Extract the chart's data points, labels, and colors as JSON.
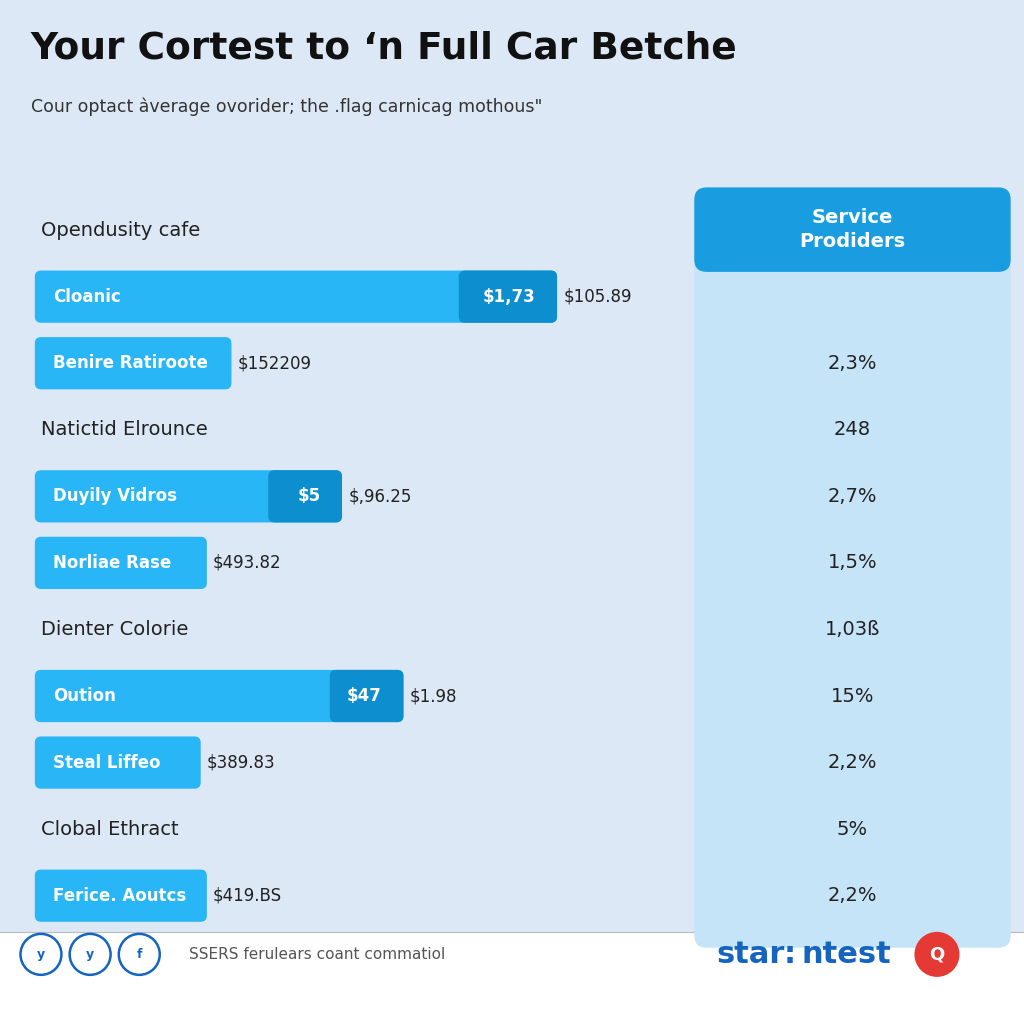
{
  "title": "Your Cortest to ‘n Full Car Betche",
  "subtitle": "Cour optact àverage ovorider; the .flag carnicag mothous\"",
  "bg_color": "#dce8f5",
  "rows": [
    {
      "label": "Opendusity cafe",
      "bar_label": null,
      "bar_value": null,
      "bar_dark_val": null,
      "bar_end_label": null,
      "outside_label": null,
      "right_value": "Service\nProdiders",
      "is_header": true,
      "is_plain": true
    },
    {
      "label": "Cloanic",
      "bar_label": "Cloanic",
      "bar_value": 0.83,
      "bar_dark_val": 0.14,
      "bar_end_label": "$1,73",
      "outside_label": "$105.89",
      "right_value": null,
      "is_header": false,
      "is_plain": false
    },
    {
      "label": "Benire Ratiroote",
      "bar_label": "Benire Ratiroote",
      "bar_value": 0.3,
      "bar_dark_val": null,
      "bar_end_label": null,
      "outside_label": "$152209",
      "right_value": "2,3%",
      "is_header": false,
      "is_plain": false
    },
    {
      "label": "Natictid Elrounce",
      "bar_label": null,
      "bar_value": null,
      "bar_dark_val": null,
      "bar_end_label": null,
      "outside_label": null,
      "right_value": "248",
      "is_header": false,
      "is_plain": true
    },
    {
      "label": "Duyily Vidros",
      "bar_label": "Duyily Vidros",
      "bar_value": 0.48,
      "bar_dark_val": 0.1,
      "bar_end_label": "$5",
      "outside_label": "$,96.25",
      "right_value": "2,7%",
      "is_header": false,
      "is_plain": false
    },
    {
      "label": "Norliae Rase",
      "bar_label": "Norliae Rase",
      "bar_value": 0.26,
      "bar_dark_val": null,
      "bar_end_label": null,
      "outside_label": "$493.82",
      "right_value": "1,5%",
      "is_header": false,
      "is_plain": false
    },
    {
      "label": "Dienter Colorie",
      "bar_label": null,
      "bar_value": null,
      "bar_dark_val": null,
      "bar_end_label": null,
      "outside_label": null,
      "right_value": "1,03ß",
      "is_header": false,
      "is_plain": true
    },
    {
      "label": "Oution",
      "bar_label": "Oution",
      "bar_value": 0.58,
      "bar_dark_val": 0.1,
      "bar_end_label": "$47",
      "outside_label": "$1.98",
      "right_value": "15%",
      "is_header": false,
      "is_plain": false
    },
    {
      "label": "Steal Liffeo",
      "bar_label": "Steal Liffeo",
      "bar_value": 0.25,
      "bar_dark_val": null,
      "bar_end_label": null,
      "outside_label": "$389.83",
      "right_value": "2,2%",
      "is_header": false,
      "is_plain": false
    },
    {
      "label": "Clobal Ethract",
      "bar_label": null,
      "bar_value": null,
      "bar_dark_val": null,
      "bar_end_label": null,
      "outside_label": null,
      "right_value": "5%",
      "is_header": false,
      "is_plain": true
    },
    {
      "label": "Ferice. Aoutcs",
      "bar_label": "Ferice. Aoutcs",
      "bar_value": 0.26,
      "bar_dark_val": null,
      "bar_end_label": null,
      "outside_label": "$419.BS",
      "right_value": "2,2%",
      "is_header": false,
      "is_plain": false
    }
  ],
  "bar_light_color": "#29b6f6",
  "bar_dark_color": "#0d8ecf",
  "right_panel_header_color": "#1a9de0",
  "right_panel_bg_color": "#c5e4f8",
  "footer_text": "SSERS ferulears coant commatiol",
  "brand_color": "#1565c0"
}
